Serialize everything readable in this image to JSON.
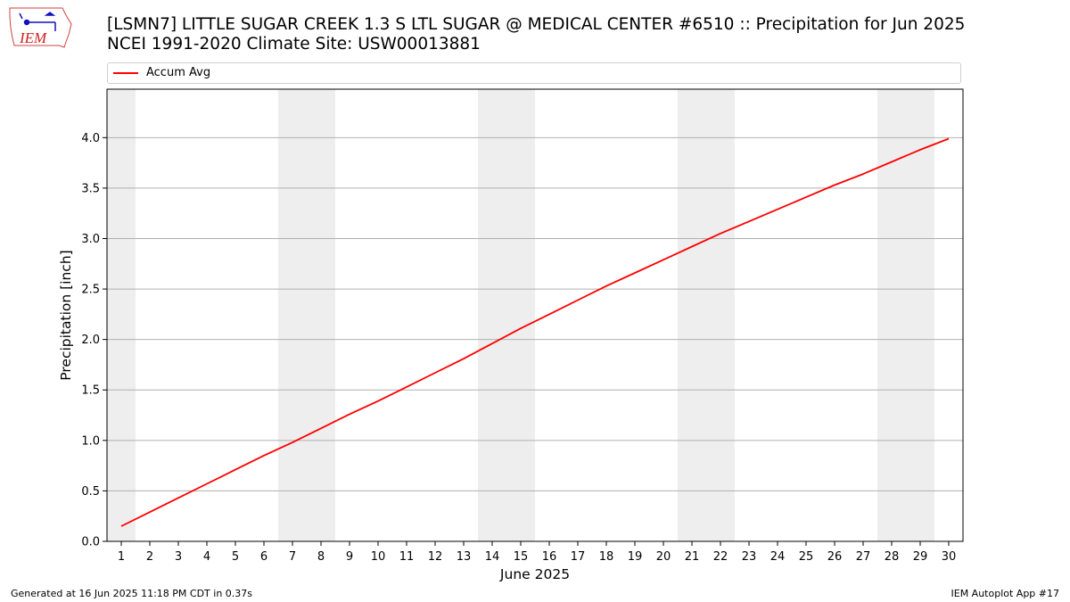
{
  "header": {
    "title_line1": "[LSMN7] LITTLE SUGAR CREEK 1.3 S LTL SUGAR @ MEDICAL CENTER #6510 :: Precipitation for Jun 2025",
    "title_line2": "NCEI 1991-2020 Climate Site: USW00013881"
  },
  "logo": {
    "text": "IEM",
    "icon": "iem-iowa-logo-icon"
  },
  "footer": {
    "generated": "Generated at 16 Jun 2025 11:18 PM CDT in 0.37s",
    "app": "IEM Autoplot App #17"
  },
  "colors": {
    "line": "#ff0000",
    "weekend_shade": "#eeeeee",
    "grid": "#b0b0b0"
  },
  "chart_data": {
    "type": "line",
    "title": "",
    "xlabel": "June 2025",
    "ylabel": "Precipitation [inch]",
    "x": [
      1,
      2,
      3,
      4,
      5,
      6,
      7,
      8,
      9,
      10,
      11,
      12,
      13,
      14,
      15,
      16,
      17,
      18,
      19,
      20,
      21,
      22,
      23,
      24,
      25,
      26,
      27,
      28,
      29,
      30
    ],
    "xlim": [
      0.5,
      30.5
    ],
    "ylim": [
      0.0,
      4.48
    ],
    "yticks": [
      0.0,
      0.5,
      1.0,
      1.5,
      2.0,
      2.5,
      3.0,
      3.5,
      4.0
    ],
    "ytick_labels": [
      "0.0",
      "0.5",
      "1.0",
      "1.5",
      "2.0",
      "2.5",
      "3.0",
      "3.5",
      "4.0"
    ],
    "xtick_labels": [
      "1",
      "2",
      "3",
      "4",
      "5",
      "6",
      "7",
      "8",
      "9",
      "10",
      "11",
      "12",
      "13",
      "14",
      "15",
      "16",
      "17",
      "18",
      "19",
      "20",
      "21",
      "22",
      "23",
      "24",
      "25",
      "26",
      "27",
      "28",
      "29",
      "30"
    ],
    "grid": "horizontal",
    "legend": "top",
    "weekend_days": [
      1,
      7,
      8,
      14,
      15,
      21,
      22,
      28,
      29
    ],
    "series": [
      {
        "name": "Accum Avg",
        "values": [
          0.15,
          0.29,
          0.43,
          0.57,
          0.71,
          0.85,
          0.98,
          1.12,
          1.26,
          1.39,
          1.53,
          1.67,
          1.81,
          1.96,
          2.11,
          2.25,
          2.39,
          2.53,
          2.66,
          2.79,
          2.92,
          3.05,
          3.17,
          3.29,
          3.41,
          3.53,
          3.64,
          3.76,
          3.88,
          3.99
        ]
      }
    ]
  }
}
